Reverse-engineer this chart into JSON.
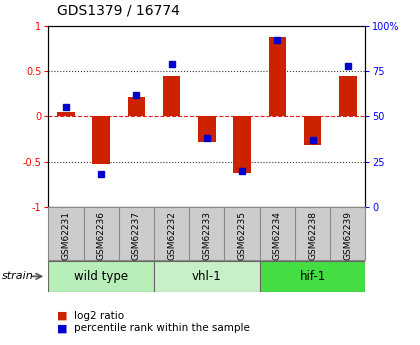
{
  "title": "GDS1379 / 16774",
  "samples": [
    "GSM62231",
    "GSM62236",
    "GSM62237",
    "GSM62232",
    "GSM62233",
    "GSM62235",
    "GSM62234",
    "GSM62238",
    "GSM62239"
  ],
  "log2_ratio": [
    0.05,
    -0.52,
    0.22,
    0.45,
    -0.28,
    -0.62,
    0.88,
    -0.32,
    0.45
  ],
  "percentile_rank": [
    55,
    18,
    62,
    79,
    38,
    20,
    92,
    37,
    78
  ],
  "groups": [
    {
      "label": "wild type",
      "start": 0,
      "end": 3,
      "color": "#b8eeb8"
    },
    {
      "label": "vhl-1",
      "start": 3,
      "end": 6,
      "color": "#c8f0c8"
    },
    {
      "label": "hif-1",
      "start": 6,
      "end": 9,
      "color": "#44dd44"
    }
  ],
  "ylim_left": [
    -1,
    1
  ],
  "ylim_right": [
    0,
    100
  ],
  "yticks_left": [
    -1,
    -0.5,
    0,
    0.5,
    1
  ],
  "yticks_right": [
    0,
    25,
    50,
    75,
    100
  ],
  "ytick_labels_right": [
    "0",
    "25",
    "50",
    "75",
    "100%"
  ],
  "bar_color": "#cc2200",
  "dot_color": "#0000cc",
  "hline_color": "#dd2222",
  "dotted_color": "#333333",
  "sample_bg": "#cccccc",
  "bg_color": "#ffffff",
  "strain_label": "strain",
  "legend_bar": "log2 ratio",
  "legend_dot": "percentile rank within the sample",
  "bar_width": 0.5
}
